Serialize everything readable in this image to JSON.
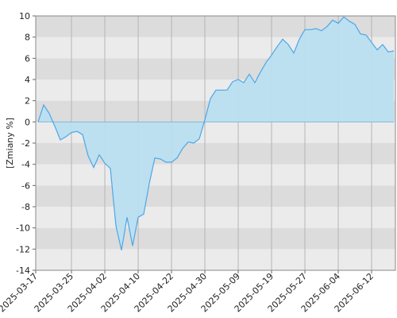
{
  "chart_data": {
    "type": "area",
    "y_label": "[Zmiany %]",
    "categories": [
      "2025-03-17",
      null,
      null,
      null,
      null,
      null,
      "2025-03-25",
      null,
      null,
      null,
      null,
      null,
      "2025-04-02",
      null,
      null,
      null,
      null,
      null,
      "2025-04-10",
      null,
      null,
      null,
      null,
      null,
      "2025-04-22",
      null,
      null,
      null,
      null,
      null,
      "2025-04-30",
      null,
      null,
      null,
      null,
      null,
      "2025-05-09",
      null,
      null,
      null,
      null,
      null,
      "2025-05-19",
      null,
      null,
      null,
      null,
      null,
      "2025-05-27",
      null,
      null,
      null,
      null,
      null,
      "2025-06-04",
      null,
      null,
      null,
      null,
      null,
      "2025-06-12",
      null,
      null,
      null,
      null
    ],
    "values": [
      0,
      1.6,
      0.8,
      -0.4,
      -1.7,
      -1.4,
      -1.0,
      -0.9,
      -1.2,
      -3.2,
      -4.3,
      -3.1,
      -3.9,
      -4.4,
      -9.8,
      -12.1,
      -9.0,
      -11.7,
      -9.0,
      -8.7,
      -5.8,
      -3.4,
      -3.5,
      -3.8,
      -3.8,
      -3.4,
      -2.5,
      -1.9,
      -2.0,
      -1.6,
      0.2,
      2.2,
      3.0,
      3.0,
      3.0,
      3.8,
      4.0,
      3.7,
      4.5,
      3.7,
      4.7,
      5.6,
      6.3,
      7.1,
      7.8,
      7.3,
      6.5,
      7.8,
      8.7,
      8.7,
      8.8,
      8.6,
      9.0,
      9.6,
      9.3,
      9.9,
      9.5,
      9.2,
      8.3,
      8.2,
      7.5,
      6.8,
      7.3,
      6.6,
      6.7
    ],
    "color": "#4da6e8",
    "fill": "#b9dff0",
    "ylim": [
      -14,
      10
    ],
    "yticks": [
      -14,
      -12,
      -10,
      -8,
      -6,
      -4,
      -2,
      0,
      2,
      4,
      6,
      8,
      10
    ],
    "band_colors": [
      "#ebebeb",
      "#dcdcdc"
    ],
    "grid": true
  }
}
